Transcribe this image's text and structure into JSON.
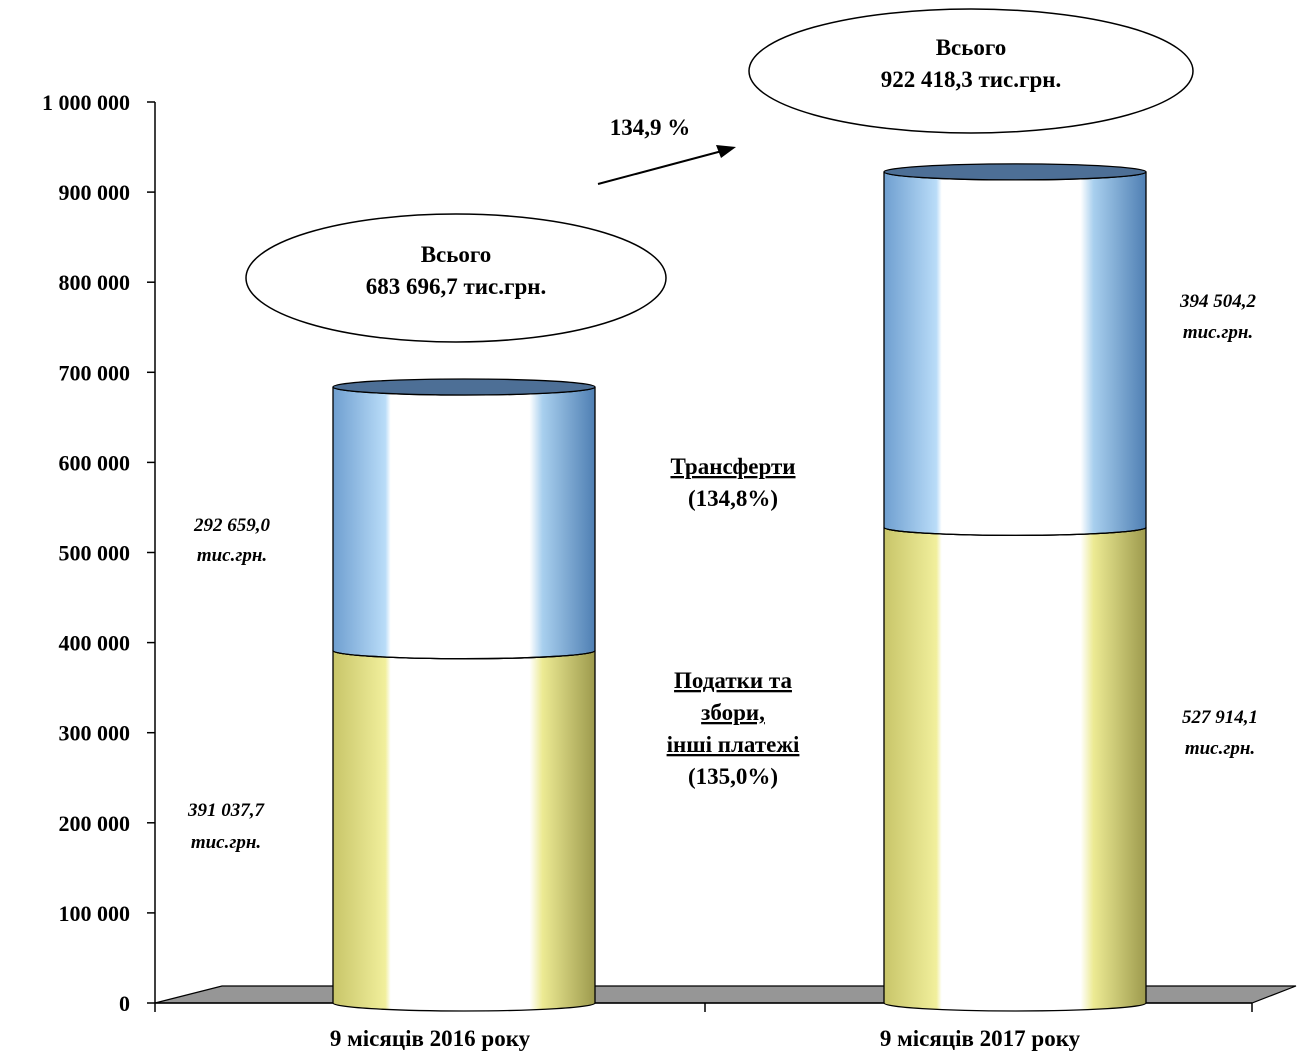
{
  "chart_data": {
    "type": "bar",
    "title": "",
    "categories": [
      "9 місяців 2016 року",
      "9 місяців 2017 року"
    ],
    "ylim": [
      0,
      1000000
    ],
    "yticks": [
      "0",
      "100 000",
      "200 000",
      "300 000",
      "400 000",
      "500 000",
      "600 000",
      "700 000",
      "800 000",
      "900 000",
      "1 000 000"
    ],
    "stacked": true,
    "series": [
      {
        "values": [
          391037.7,
          527914.1
        ],
        "labels": [
          [
            "391 037,7",
            "тис.грн."
          ],
          [
            "527 914,1",
            "тис.грн."
          ]
        ],
        "color": "#e8e68a"
      },
      {
        "values": [
          292659.0,
          394504.2
        ],
        "labels": [
          [
            "292 659,0",
            "тис.грн."
          ],
          [
            "394 504,2",
            "тис.грн."
          ]
        ],
        "color": "#8cc0ea"
      }
    ],
    "totals": [
      [
        "Всього",
        "683 696,7 тис.грн."
      ],
      [
        "Всього",
        "922 418,3 тис.грн."
      ]
    ],
    "growth_label": "134,9 %",
    "legend_transfers": [
      "Трансферти",
      "(134,8%)"
    ],
    "legend_taxes": [
      "Податки та",
      "збори,",
      "інші платежі",
      "(135,0%)"
    ],
    "grid": false
  }
}
